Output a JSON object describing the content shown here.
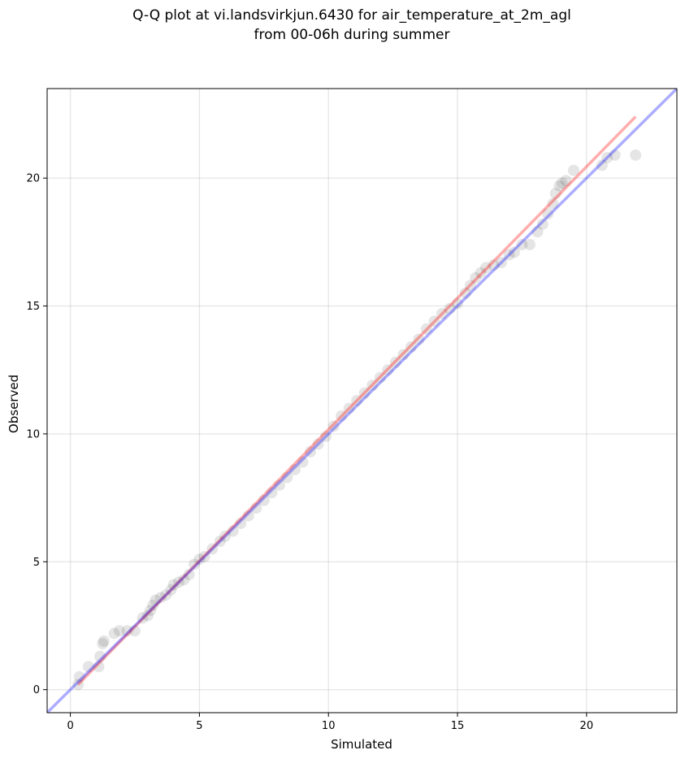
{
  "chart_data": {
    "type": "scatter",
    "title_lines": [
      "Q-Q plot at vi.landsvirkjun.6430 for air_temperature_at_2m_agl",
      "from 00-06h during summer"
    ],
    "xlabel": "Simulated",
    "ylabel": "Observed",
    "xlim": [
      -0.9,
      23.5
    ],
    "ylim": [
      -0.9,
      23.5
    ],
    "xticks": [
      0,
      5,
      10,
      15,
      20
    ],
    "yticks": [
      0,
      5,
      10,
      15,
      20
    ],
    "grid": true,
    "series": [
      {
        "kind": "points",
        "color": "#000000",
        "points": [
          [
            0.3,
            0.2
          ],
          [
            0.35,
            0.5
          ],
          [
            0.7,
            0.9
          ],
          [
            1.1,
            0.9
          ],
          [
            1.15,
            1.3
          ],
          [
            1.25,
            1.8
          ],
          [
            1.3,
            1.9
          ],
          [
            1.7,
            2.2
          ],
          [
            1.9,
            2.3
          ],
          [
            2.2,
            2.3
          ],
          [
            2.5,
            2.3
          ],
          [
            2.8,
            2.8
          ],
          [
            3.0,
            2.9
          ],
          [
            3.1,
            3.1
          ],
          [
            3.2,
            3.3
          ],
          [
            3.3,
            3.5
          ],
          [
            3.5,
            3.6
          ],
          [
            3.7,
            3.7
          ],
          [
            3.9,
            3.9
          ],
          [
            4.0,
            4.1
          ],
          [
            4.2,
            4.2
          ],
          [
            4.4,
            4.3
          ],
          [
            4.6,
            4.5
          ],
          [
            4.8,
            4.9
          ],
          [
            5.0,
            5.1
          ],
          [
            5.2,
            5.2
          ],
          [
            5.5,
            5.5
          ],
          [
            5.8,
            5.8
          ],
          [
            6.0,
            6.0
          ],
          [
            6.3,
            6.2
          ],
          [
            6.6,
            6.5
          ],
          [
            6.9,
            6.8
          ],
          [
            7.2,
            7.1
          ],
          [
            7.5,
            7.4
          ],
          [
            7.8,
            7.7
          ],
          [
            8.1,
            8.0
          ],
          [
            8.4,
            8.3
          ],
          [
            8.7,
            8.6
          ],
          [
            9.0,
            8.9
          ],
          [
            9.3,
            9.3
          ],
          [
            9.6,
            9.6
          ],
          [
            9.9,
            9.9
          ],
          [
            10.2,
            10.3
          ],
          [
            10.5,
            10.7
          ],
          [
            10.8,
            11.0
          ],
          [
            11.1,
            11.3
          ],
          [
            11.4,
            11.6
          ],
          [
            11.7,
            11.9
          ],
          [
            12.0,
            12.2
          ],
          [
            12.3,
            12.5
          ],
          [
            12.6,
            12.8
          ],
          [
            12.9,
            13.1
          ],
          [
            13.2,
            13.4
          ],
          [
            13.5,
            13.7
          ],
          [
            13.8,
            14.1
          ],
          [
            14.1,
            14.4
          ],
          [
            14.4,
            14.7
          ],
          [
            14.7,
            14.9
          ],
          [
            15.0,
            15.1
          ],
          [
            15.3,
            15.5
          ],
          [
            15.5,
            15.8
          ],
          [
            15.7,
            16.1
          ],
          [
            15.9,
            16.3
          ],
          [
            16.1,
            16.5
          ],
          [
            16.4,
            16.6
          ],
          [
            16.7,
            16.7
          ],
          [
            17.0,
            17.0
          ],
          [
            17.2,
            17.1
          ],
          [
            17.5,
            17.4
          ],
          [
            17.8,
            17.4
          ],
          [
            18.1,
            17.9
          ],
          [
            18.3,
            18.2
          ],
          [
            18.5,
            18.6
          ],
          [
            18.7,
            19.0
          ],
          [
            18.8,
            19.4
          ],
          [
            18.95,
            19.7
          ],
          [
            19.05,
            19.8
          ],
          [
            19.2,
            19.9
          ],
          [
            19.5,
            20.3
          ],
          [
            20.6,
            20.5
          ],
          [
            20.8,
            20.8
          ],
          [
            21.1,
            20.9
          ],
          [
            21.9,
            20.9
          ]
        ]
      },
      {
        "kind": "line",
        "color": "#ff0000",
        "points": [
          [
            0.3,
            0.2
          ],
          [
            21.9,
            22.4
          ]
        ]
      },
      {
        "kind": "line",
        "color": "#0000ff",
        "points": [
          [
            -0.9,
            -0.9
          ],
          [
            23.5,
            23.5
          ]
        ]
      }
    ]
  }
}
